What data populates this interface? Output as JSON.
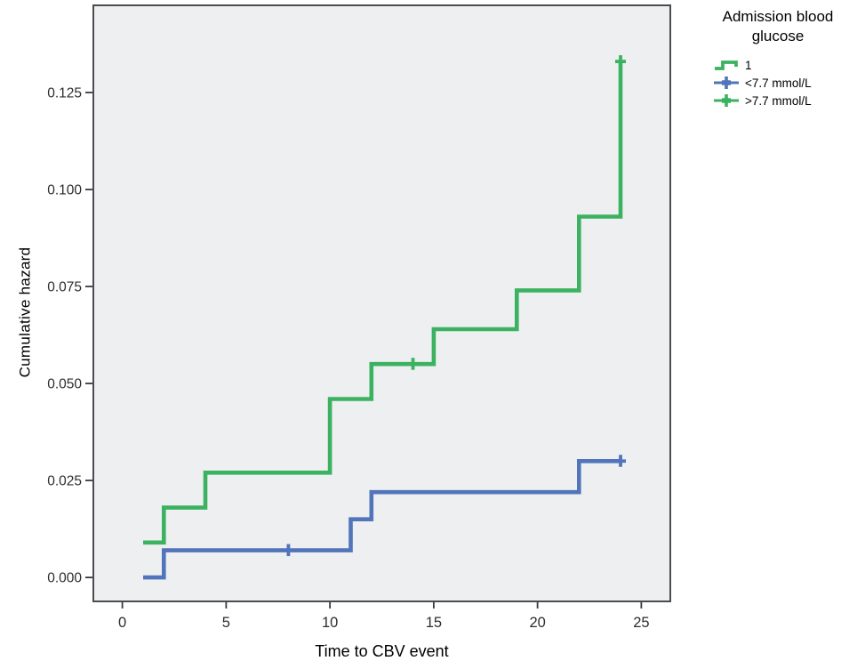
{
  "axes": {
    "x_title": "Time to CBV event",
    "y_title": "Cumulative hazard"
  },
  "legend": {
    "title": "Admission blood glucose",
    "items": [
      {
        "label": "1",
        "symbol": "step-line-icon",
        "color": "#3cb261"
      },
      {
        "label": "<7.7 mmol/L",
        "symbol": "plus-line-icon",
        "color": "#5174ba"
      },
      {
        "label": ">7.7 mmol/L",
        "symbol": "plus-line-icon",
        "color": "#3cb261"
      }
    ]
  },
  "chart_data": {
    "type": "line",
    "subtype": "step-cumulative-hazard",
    "title": "",
    "xlabel": "Time to CBV event",
    "ylabel": "Cumulative hazard",
    "x_range": [
      -1.44,
      26.44
    ],
    "y_range": [
      -0.0064,
      0.1477
    ],
    "grid": false,
    "legend_position": "right",
    "plot_bg": "#edeff1",
    "border_color": "#4a4c50",
    "tick_color": "#3a3a3a",
    "x_ticks": [
      {
        "v": 0,
        "label": "0"
      },
      {
        "v": 5,
        "label": "5"
      },
      {
        "v": 10,
        "label": "10"
      },
      {
        "v": 15,
        "label": "15"
      },
      {
        "v": 20,
        "label": "20"
      },
      {
        "v": 25,
        "label": "25"
      }
    ],
    "y_ticks": [
      {
        "v": 0.0,
        "label": "0.000"
      },
      {
        "v": 0.025,
        "label": "0.025"
      },
      {
        "v": 0.05,
        "label": "0.050"
      },
      {
        "v": 0.075,
        "label": "0.075"
      },
      {
        "v": 0.1,
        "label": "0.100"
      },
      {
        "v": 0.125,
        "label": "0.125"
      }
    ],
    "series": [
      {
        "id": "gt77",
        "name": ">7.7 mmol/L",
        "color": "#3cb261",
        "end_t": 24,
        "points": [
          [
            1,
            0.009
          ],
          [
            2,
            0.018
          ],
          [
            4,
            0.027
          ],
          [
            10,
            0.046
          ],
          [
            12,
            0.055
          ],
          [
            15,
            0.064
          ],
          [
            19,
            0.074
          ],
          [
            22,
            0.093
          ],
          [
            24,
            0.133
          ]
        ],
        "censored": [
          [
            14,
            0.055
          ],
          [
            24,
            0.133
          ]
        ]
      },
      {
        "id": "lt77",
        "name": "<7.7 mmol/L",
        "color": "#5174ba",
        "end_t": 24,
        "points": [
          [
            1,
            0.0
          ],
          [
            2,
            0.007
          ],
          [
            11,
            0.015
          ],
          [
            12,
            0.022
          ],
          [
            22,
            0.03
          ]
        ],
        "censored": [
          [
            8,
            0.007
          ],
          [
            24,
            0.03
          ]
        ]
      }
    ]
  }
}
